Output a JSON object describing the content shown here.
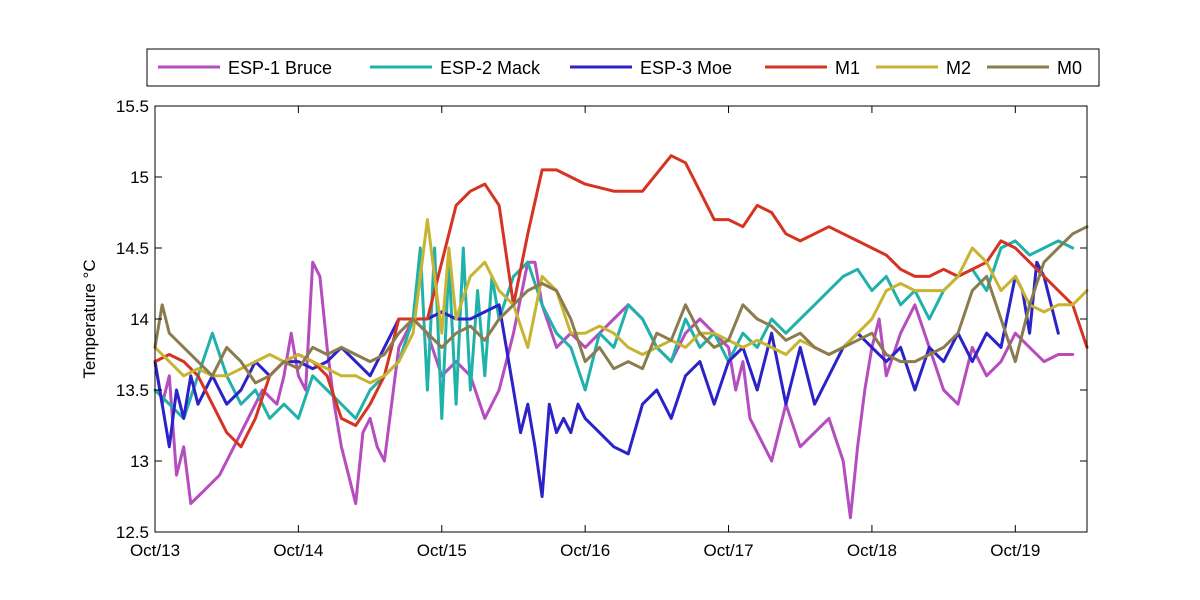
{
  "chart_data": {
    "type": "line",
    "title": "",
    "xlabel": "",
    "ylabel": "Temperature °C",
    "xlim": [
      0,
      6.5
    ],
    "ylim": [
      12.5,
      15.5
    ],
    "x_ticks": [
      0,
      1,
      2,
      3,
      4,
      5,
      6
    ],
    "x_tick_labels": [
      "Oct/13",
      "Oct/14",
      "Oct/15",
      "Oct/16",
      "Oct/17",
      "Oct/18",
      "Oct/19"
    ],
    "y_ticks": [
      12.5,
      13,
      13.5,
      14,
      14.5,
      15,
      15.5
    ],
    "y_tick_labels": [
      "12.5",
      "13",
      "13.5",
      "14",
      "14.5",
      "15",
      "15.5"
    ],
    "grid": false,
    "legend_position": "top",
    "series": [
      {
        "name": "ESP-1 Bruce",
        "color": "#b54dbf",
        "x": [
          0,
          0.05,
          0.1,
          0.15,
          0.2,
          0.25,
          0.3,
          0.35,
          0.45,
          0.55,
          0.65,
          0.75,
          0.85,
          0.9,
          0.95,
          1.0,
          1.05,
          1.1,
          1.15,
          1.2,
          1.25,
          1.3,
          1.35,
          1.4,
          1.45,
          1.5,
          1.55,
          1.6,
          1.65,
          1.7,
          1.8,
          1.9,
          2.0,
          2.1,
          2.2,
          2.3,
          2.4,
          2.5,
          2.6,
          2.65,
          2.7,
          2.8,
          2.9,
          3.0,
          3.1,
          3.2,
          3.3,
          3.4,
          3.5,
          3.6,
          3.7,
          3.8,
          3.9,
          4.0,
          4.05,
          4.1,
          4.15,
          4.2,
          4.3,
          4.4,
          4.5,
          4.6,
          4.7,
          4.8,
          4.85,
          4.9,
          4.95,
          5.0,
          5.05,
          5.1,
          5.2,
          5.3,
          5.4,
          5.5,
          5.6,
          5.7,
          5.8,
          5.9,
          6.0,
          6.1,
          6.2,
          6.3,
          6.4
        ],
        "values": [
          13.7,
          13.4,
          13.6,
          12.9,
          13.1,
          12.7,
          12.75,
          12.8,
          12.9,
          13.1,
          13.3,
          13.5,
          13.4,
          13.6,
          13.9,
          13.6,
          13.5,
          14.4,
          14.3,
          13.8,
          13.4,
          13.1,
          12.9,
          12.7,
          13.2,
          13.3,
          13.1,
          13.0,
          13.4,
          13.8,
          14.0,
          13.9,
          13.6,
          13.7,
          13.6,
          13.3,
          13.5,
          13.9,
          14.4,
          14.4,
          14.1,
          13.8,
          13.9,
          13.8,
          13.9,
          14.0,
          14.1,
          14.0,
          13.8,
          13.7,
          13.9,
          14.0,
          13.9,
          13.8,
          13.5,
          13.7,
          13.3,
          13.2,
          13.0,
          13.4,
          13.1,
          13.2,
          13.3,
          13.0,
          12.6,
          13.1,
          13.5,
          13.8,
          14.0,
          13.6,
          13.9,
          14.1,
          13.8,
          13.5,
          13.4,
          13.8,
          13.6,
          13.7,
          13.9,
          13.8,
          13.7,
          13.75,
          13.75
        ]
      },
      {
        "name": "ESP-2 Mack",
        "color": "#20b2aa",
        "x": [
          0,
          0.1,
          0.2,
          0.3,
          0.4,
          0.5,
          0.6,
          0.7,
          0.8,
          0.9,
          1.0,
          1.1,
          1.2,
          1.3,
          1.4,
          1.5,
          1.6,
          1.7,
          1.8,
          1.85,
          1.9,
          1.95,
          2.0,
          2.05,
          2.1,
          2.15,
          2.2,
          2.25,
          2.3,
          2.35,
          2.4,
          2.5,
          2.6,
          2.7,
          2.8,
          2.9,
          3.0,
          3.1,
          3.2,
          3.3,
          3.4,
          3.5,
          3.6,
          3.7,
          3.8,
          3.9,
          4.0,
          4.1,
          4.2,
          4.3,
          4.4,
          4.5,
          4.6,
          4.7,
          4.8,
          4.9,
          5.0,
          5.1,
          5.2,
          5.3,
          5.4,
          5.5,
          5.6,
          5.7,
          5.8,
          5.9,
          6.0,
          6.1,
          6.2,
          6.3,
          6.4
        ],
        "values": [
          13.5,
          13.4,
          13.3,
          13.6,
          13.9,
          13.6,
          13.4,
          13.5,
          13.3,
          13.4,
          13.3,
          13.6,
          13.5,
          13.4,
          13.3,
          13.5,
          13.6,
          13.7,
          14.0,
          14.5,
          13.5,
          14.5,
          13.3,
          14.4,
          13.4,
          14.5,
          13.5,
          14.2,
          13.6,
          14.3,
          14.0,
          14.3,
          14.4,
          14.1,
          13.9,
          13.8,
          13.5,
          13.9,
          13.8,
          14.1,
          14.0,
          13.8,
          13.7,
          14.0,
          13.8,
          13.9,
          13.7,
          13.9,
          13.8,
          14.0,
          13.9,
          14.0,
          14.1,
          14.2,
          14.3,
          14.35,
          14.2,
          14.3,
          14.1,
          14.2,
          14.0,
          14.2,
          14.3,
          14.35,
          14.2,
          14.5,
          14.55,
          14.45,
          14.5,
          14.55,
          14.5
        ]
      },
      {
        "name": "ESP-3 Moe",
        "color": "#2b22c8",
        "x": [
          0,
          0.05,
          0.1,
          0.15,
          0.2,
          0.25,
          0.3,
          0.4,
          0.5,
          0.6,
          0.7,
          0.8,
          0.9,
          1.0,
          1.1,
          1.2,
          1.3,
          1.4,
          1.5,
          1.6,
          1.7,
          1.8,
          1.9,
          2.0,
          2.1,
          2.2,
          2.3,
          2.4,
          2.5,
          2.55,
          2.6,
          2.65,
          2.7,
          2.75,
          2.8,
          2.85,
          2.9,
          2.95,
          3.0,
          3.1,
          3.2,
          3.3,
          3.4,
          3.5,
          3.6,
          3.7,
          3.8,
          3.9,
          4.0,
          4.1,
          4.2,
          4.3,
          4.4,
          4.5,
          4.6,
          4.7,
          4.8,
          4.9,
          5.0,
          5.1,
          5.2,
          5.3,
          5.4,
          5.5,
          5.6,
          5.7,
          5.8,
          5.9,
          6.0,
          6.05,
          6.1,
          6.15,
          6.2,
          6.3
        ],
        "values": [
          13.7,
          13.4,
          13.1,
          13.5,
          13.3,
          13.6,
          13.4,
          13.6,
          13.4,
          13.5,
          13.7,
          13.6,
          13.7,
          13.7,
          13.65,
          13.7,
          13.8,
          13.7,
          13.6,
          13.8,
          14.0,
          14.0,
          14.0,
          14.05,
          14.0,
          14.0,
          14.05,
          14.1,
          13.5,
          13.2,
          13.4,
          13.1,
          12.75,
          13.4,
          13.2,
          13.3,
          13.2,
          13.4,
          13.3,
          13.2,
          13.1,
          13.05,
          13.4,
          13.5,
          13.3,
          13.6,
          13.7,
          13.4,
          13.7,
          13.8,
          13.5,
          13.9,
          13.4,
          13.8,
          13.4,
          13.6,
          13.8,
          13.9,
          13.8,
          13.7,
          13.8,
          13.5,
          13.8,
          13.7,
          13.9,
          13.7,
          13.9,
          13.8,
          14.3,
          14.2,
          13.9,
          14.4,
          14.3,
          13.9
        ]
      },
      {
        "name": "M1",
        "color": "#d63322",
        "x": [
          0,
          0.1,
          0.2,
          0.3,
          0.4,
          0.5,
          0.6,
          0.7,
          0.8,
          0.9,
          1.0,
          1.1,
          1.2,
          1.3,
          1.4,
          1.5,
          1.6,
          1.7,
          1.8,
          1.9,
          2.0,
          2.1,
          2.2,
          2.3,
          2.4,
          2.5,
          2.6,
          2.7,
          2.8,
          2.9,
          3.0,
          3.2,
          3.4,
          3.6,
          3.7,
          3.8,
          3.9,
          4.0,
          4.1,
          4.2,
          4.3,
          4.4,
          4.5,
          4.6,
          4.7,
          4.8,
          4.9,
          5.0,
          5.1,
          5.2,
          5.3,
          5.4,
          5.5,
          5.6,
          5.7,
          5.8,
          5.9,
          6.0,
          6.1,
          6.2,
          6.3,
          6.4,
          6.5
        ],
        "values": [
          13.7,
          13.75,
          13.7,
          13.6,
          13.4,
          13.2,
          13.1,
          13.3,
          13.6,
          13.7,
          13.75,
          13.7,
          13.6,
          13.3,
          13.25,
          13.4,
          13.6,
          14.0,
          14.0,
          14.0,
          14.4,
          14.8,
          14.9,
          14.95,
          14.8,
          14.1,
          14.6,
          15.05,
          15.05,
          15.0,
          14.95,
          14.9,
          14.9,
          15.15,
          15.1,
          14.9,
          14.7,
          14.7,
          14.65,
          14.8,
          14.75,
          14.6,
          14.55,
          14.6,
          14.65,
          14.6,
          14.55,
          14.5,
          14.45,
          14.35,
          14.3,
          14.3,
          14.35,
          14.3,
          14.35,
          14.4,
          14.55,
          14.5,
          14.4,
          14.3,
          14.2,
          14.1,
          13.8
        ]
      },
      {
        "name": "M2",
        "color": "#c8b432",
        "x": [
          0,
          0.1,
          0.2,
          0.3,
          0.4,
          0.5,
          0.6,
          0.7,
          0.8,
          0.9,
          1.0,
          1.1,
          1.2,
          1.3,
          1.4,
          1.5,
          1.6,
          1.7,
          1.8,
          1.85,
          1.9,
          1.95,
          2.0,
          2.05,
          2.1,
          2.2,
          2.3,
          2.4,
          2.5,
          2.6,
          2.7,
          2.8,
          2.9,
          3.0,
          3.1,
          3.2,
          3.3,
          3.4,
          3.5,
          3.6,
          3.7,
          3.8,
          3.9,
          4.0,
          4.1,
          4.2,
          4.3,
          4.4,
          4.5,
          4.6,
          4.7,
          4.8,
          4.9,
          5.0,
          5.1,
          5.2,
          5.3,
          5.4,
          5.5,
          5.6,
          5.7,
          5.8,
          5.9,
          6.0,
          6.1,
          6.2,
          6.3,
          6.4,
          6.5
        ],
        "values": [
          13.8,
          13.7,
          13.6,
          13.65,
          13.6,
          13.6,
          13.65,
          13.7,
          13.75,
          13.7,
          13.75,
          13.7,
          13.65,
          13.6,
          13.6,
          13.55,
          13.6,
          13.7,
          13.9,
          14.3,
          14.7,
          14.3,
          13.9,
          14.5,
          14.0,
          14.3,
          14.4,
          14.2,
          14.1,
          13.8,
          14.3,
          14.2,
          13.9,
          13.9,
          13.95,
          13.9,
          13.8,
          13.75,
          13.8,
          13.85,
          13.8,
          13.9,
          13.9,
          13.85,
          13.8,
          13.85,
          13.8,
          13.75,
          13.85,
          13.8,
          13.75,
          13.8,
          13.9,
          14.0,
          14.2,
          14.25,
          14.2,
          14.2,
          14.2,
          14.3,
          14.5,
          14.4,
          14.2,
          14.3,
          14.1,
          14.05,
          14.1,
          14.1,
          14.2
        ]
      },
      {
        "name": "M0",
        "color": "#8b7c4e",
        "x": [
          0,
          0.05,
          0.1,
          0.2,
          0.3,
          0.4,
          0.5,
          0.6,
          0.7,
          0.8,
          0.9,
          1.0,
          1.1,
          1.2,
          1.3,
          1.4,
          1.5,
          1.6,
          1.7,
          1.8,
          1.9,
          2.0,
          2.1,
          2.2,
          2.3,
          2.4,
          2.5,
          2.6,
          2.7,
          2.8,
          2.9,
          3.0,
          3.1,
          3.2,
          3.3,
          3.4,
          3.5,
          3.6,
          3.7,
          3.8,
          3.9,
          4.0,
          4.1,
          4.2,
          4.3,
          4.4,
          4.5,
          4.6,
          4.7,
          4.8,
          4.9,
          5.0,
          5.1,
          5.2,
          5.3,
          5.4,
          5.5,
          5.6,
          5.7,
          5.8,
          5.9,
          6.0,
          6.1,
          6.2,
          6.3,
          6.4,
          6.5
        ],
        "values": [
          13.8,
          14.1,
          13.9,
          13.8,
          13.7,
          13.6,
          13.8,
          13.7,
          13.55,
          13.6,
          13.7,
          13.65,
          13.8,
          13.75,
          13.8,
          13.75,
          13.7,
          13.75,
          13.9,
          14.0,
          13.9,
          13.8,
          13.9,
          13.95,
          13.85,
          14.0,
          14.1,
          14.2,
          14.25,
          14.2,
          14.0,
          13.7,
          13.8,
          13.65,
          13.7,
          13.65,
          13.9,
          13.85,
          14.1,
          13.9,
          13.8,
          13.85,
          14.1,
          14.0,
          13.95,
          13.85,
          13.9,
          13.8,
          13.75,
          13.8,
          13.85,
          13.9,
          13.75,
          13.7,
          13.7,
          13.75,
          13.8,
          13.9,
          14.2,
          14.3,
          14.0,
          13.7,
          14.1,
          14.4,
          14.5,
          14.6,
          14.65
        ]
      }
    ]
  }
}
